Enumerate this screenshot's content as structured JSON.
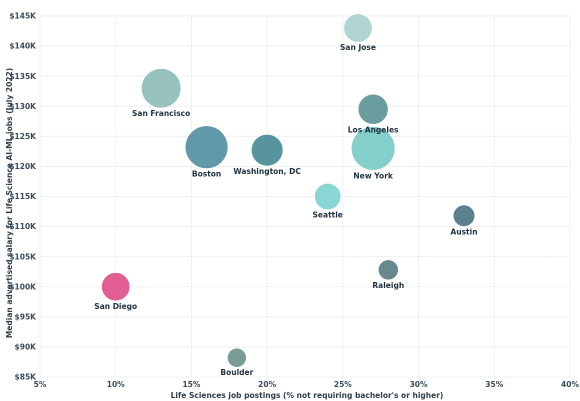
{
  "chart_data": {
    "type": "scatter",
    "xlabel": "Life Sciences job postings (% not requiring bachelor's or higher)",
    "ylabel": "Median advertised salary for Life Science AI-ML jobs (July 2022)",
    "xlim": [
      5,
      40
    ],
    "ylim": [
      85000,
      145000
    ],
    "x_ticks": [
      5,
      10,
      15,
      20,
      25,
      30,
      35,
      40
    ],
    "x_tick_labels": [
      "5%",
      "10%",
      "15%",
      "20%",
      "25%",
      "30%",
      "35%",
      "40%"
    ],
    "y_ticks": [
      85000,
      90000,
      95000,
      100000,
      105000,
      110000,
      115000,
      120000,
      125000,
      130000,
      135000,
      140000,
      145000
    ],
    "y_tick_labels": [
      "$85K",
      "$90K",
      "$95K",
      "$100K",
      "$105K",
      "$110K",
      "$115K",
      "$120K",
      "$125K",
      "$130K",
      "$135K",
      "$140K",
      "$145K"
    ],
    "grid": true,
    "points": [
      {
        "label": "San Jose",
        "x": 26,
        "y": 143000,
        "size": 5,
        "color": "#a9d1cd"
      },
      {
        "label": "San Francisco",
        "x": 13,
        "y": 133000,
        "size": 13,
        "color": "#8fbdb9"
      },
      {
        "label": "Los Angeles",
        "x": 27,
        "y": 129500,
        "size": 6,
        "color": "#5d9595"
      },
      {
        "label": "Boston",
        "x": 16,
        "y": 123200,
        "size": 16,
        "color": "#5590a3"
      },
      {
        "label": "Washington, DC",
        "x": 20,
        "y": 122700,
        "size": 7,
        "color": "#4a8a98"
      },
      {
        "label": "New York",
        "x": 27,
        "y": 123000,
        "size": 17,
        "color": "#79cbc6"
      },
      {
        "label": "Seattle",
        "x": 24,
        "y": 115000,
        "size": 4,
        "color": "#80d3d0"
      },
      {
        "label": "Austin",
        "x": 33,
        "y": 111800,
        "size": 2,
        "color": "#4f7584"
      },
      {
        "label": "Raleigh",
        "x": 28,
        "y": 102800,
        "size": 1.5,
        "color": "#5b7d86"
      },
      {
        "label": "San Diego",
        "x": 10,
        "y": 100000,
        "size": 5,
        "color": "#e0508a"
      },
      {
        "label": "Boulder",
        "x": 18,
        "y": 88200,
        "size": 1.2,
        "color": "#6f948e"
      }
    ]
  }
}
